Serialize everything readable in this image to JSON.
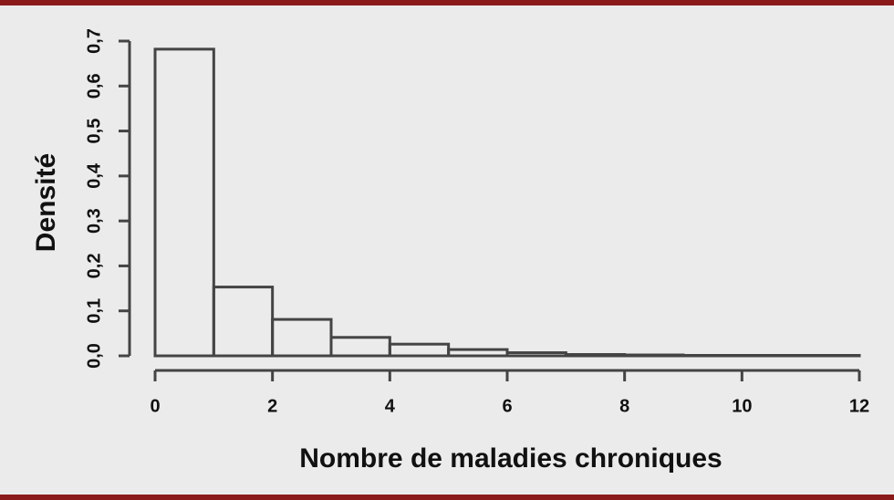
{
  "chart_data": {
    "type": "histogram",
    "x_label": "Nombre de maladies chroniques",
    "y_label": "Densité",
    "bins": [
      0,
      1,
      2,
      3,
      4,
      5,
      6,
      7,
      8,
      9,
      10,
      11,
      12
    ],
    "values": [
      0.682,
      0.153,
      0.081,
      0.041,
      0.026,
      0.014,
      0.007,
      0.003,
      0.002,
      0.001,
      0.001,
      0.001
    ],
    "color": "#444444",
    "xlim": [
      0,
      12
    ],
    "xticks": [
      0,
      2,
      4,
      6,
      8,
      10,
      12
    ],
    "ylim": [
      0,
      0.7
    ],
    "yticks": [
      {
        "value": 0,
        "label": "0,0"
      },
      {
        "value": 0.1,
        "label": "0,1"
      },
      {
        "value": 0.2,
        "label": "0,2"
      },
      {
        "value": 0.3,
        "label": "0,3"
      },
      {
        "value": 0.4,
        "label": "0,4"
      },
      {
        "value": 0.5,
        "label": "0,5"
      },
      {
        "value": 0.6,
        "label": "0,6"
      },
      {
        "value": 0.7,
        "label": "0,7"
      }
    ]
  }
}
